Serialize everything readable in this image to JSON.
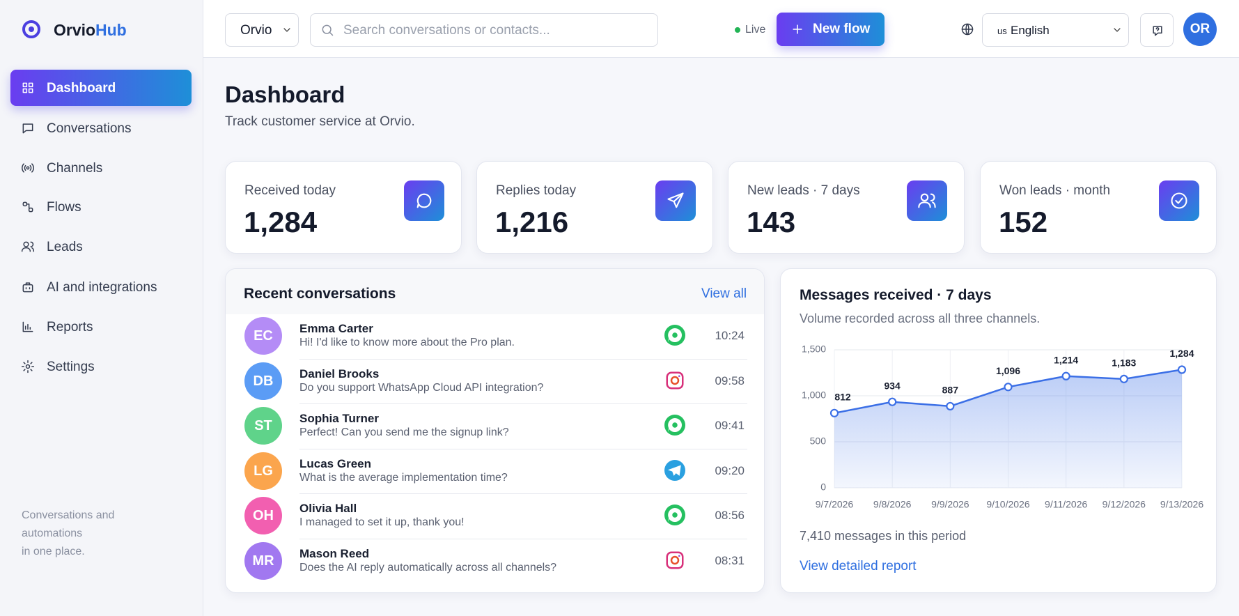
{
  "brand": {
    "first": "Orvio",
    "second": "Hub"
  },
  "nav": [
    "Dashboard",
    "Conversations",
    "Channels",
    "Flows",
    "Leads",
    "AI and integrations",
    "Reports",
    "Settings"
  ],
  "sidebar_footer": [
    "Conversations and",
    "automations",
    "in one place."
  ],
  "topbar": {
    "workspace": "Orvio",
    "search_placeholder": "Search conversations or contacts...",
    "status": "Live",
    "new_flow": "New flow",
    "language_flag": "us",
    "language": "English",
    "avatar": "OR"
  },
  "header": {
    "title": "Dashboard",
    "subtitle": "Track customer service at Orvio."
  },
  "stats": [
    {
      "label": "Received today",
      "value": "1,284"
    },
    {
      "label": "Replies today",
      "value": "1,216"
    },
    {
      "label": "New leads · 7 days",
      "value": "143"
    },
    {
      "label": "Won leads · month",
      "value": "152"
    }
  ],
  "recent": {
    "title": "Recent conversations",
    "view_all": "View all",
    "rows": [
      {
        "initials": "EC",
        "name": "Emma Carter",
        "message": "Hi! I'd like to know more about the Pro plan.",
        "time": "10:24"
      },
      {
        "initials": "DB",
        "name": "Daniel Brooks",
        "message": "Do you support WhatsApp Cloud API integration?",
        "time": "09:58"
      },
      {
        "initials": "ST",
        "name": "Sophia Turner",
        "message": "Perfect! Can you send me the signup link?",
        "time": "09:41"
      },
      {
        "initials": "LG",
        "name": "Lucas Green",
        "message": "What is the average implementation time?",
        "time": "09:20"
      },
      {
        "initials": "OH",
        "name": "Olivia Hall",
        "message": "I managed to set it up, thank you!",
        "time": "08:56"
      },
      {
        "initials": "MR",
        "name": "Mason Reed",
        "message": "Does the AI reply automatically across all channels?",
        "time": "08:31"
      }
    ]
  },
  "chart_footer": {
    "summary": "7,410 messages in this period",
    "link": "View detailed report"
  },
  "chart_data": {
    "type": "line",
    "title": "Messages received · 7 days",
    "subtitle": "Volume recorded across all three channels.",
    "categories": [
      "9/7/2026",
      "9/8/2026",
      "9/9/2026",
      "9/10/2026",
      "9/11/2026",
      "9/12/2026",
      "9/13/2026"
    ],
    "series": [
      {
        "name": "Messages received",
        "color": "#3b6fe6",
        "values": [
          812,
          934,
          887,
          1096,
          1214,
          1183,
          1284
        ],
        "value_labels": [
          "812",
          "934",
          "887",
          "1,096",
          "1,214",
          "1,183",
          "1,284"
        ]
      }
    ],
    "ylim": [
      0,
      1500
    ],
    "yticks": [
      0,
      500,
      {
        "value": 1000,
        "label": "1,000"
      },
      {
        "value": 1500,
        "label": "1,500"
      }
    ],
    "grid": true
  }
}
